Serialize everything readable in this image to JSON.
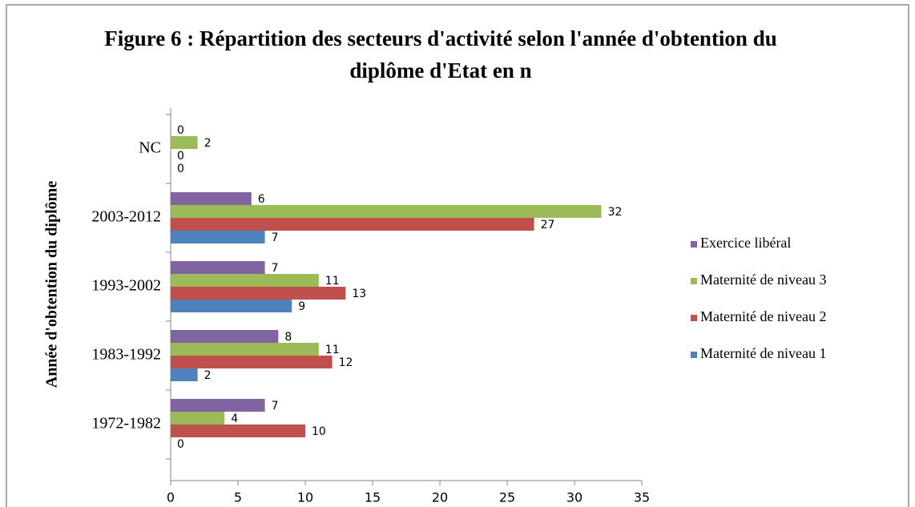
{
  "chart_data": {
    "type": "bar",
    "orientation": "horizontal",
    "title": "Figure 6 : Répartition des secteurs d'activité selon l'année d'obtention du diplôme d'Etat en n",
    "y_label": "Année d'obtention du diplôme",
    "categories": [
      "1972-1982",
      "1983-1992",
      "1993-2002",
      "2003-2012",
      "NC"
    ],
    "series": [
      {
        "name": "Exercice libéral",
        "color": "#8064A2",
        "values": [
          7,
          8,
          7,
          6,
          0
        ]
      },
      {
        "name": "Maternité de niveau 3",
        "color": "#9BBB59",
        "values": [
          4,
          11,
          11,
          32,
          2
        ]
      },
      {
        "name": "Maternité de niveau 2",
        "color": "#C0504D",
        "values": [
          10,
          12,
          13,
          27,
          0
        ]
      },
      {
        "name": "Maternité de niveau 1",
        "color": "#4F81BD",
        "values": [
          0,
          2,
          9,
          7,
          0
        ]
      }
    ],
    "xlim": [
      0,
      35
    ],
    "xticks": [
      0,
      5,
      10,
      15,
      20,
      25,
      30,
      35
    ],
    "legend": "right"
  }
}
